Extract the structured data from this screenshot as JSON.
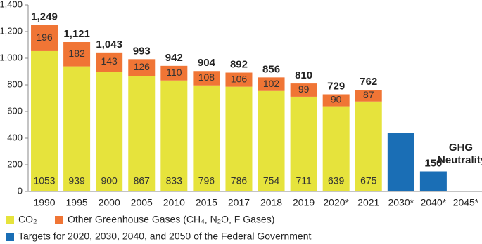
{
  "chart_data": {
    "type": "bar",
    "categories": [
      "1990",
      "1995",
      "2000",
      "2005",
      "2010",
      "2015",
      "2017",
      "2018",
      "2019",
      "2020*",
      "2021",
      "2030*",
      "2040*",
      "2045*"
    ],
    "series": [
      {
        "name": "CO₂",
        "color": "#e6e33c",
        "values": [
          1053,
          939,
          900,
          867,
          833,
          796,
          786,
          754,
          711,
          639,
          675,
          null,
          null,
          null
        ]
      },
      {
        "name": "Other Greenhouse Gases (CH₄, N₂O, F Gases)",
        "color": "#f07535",
        "values": [
          196,
          182,
          143,
          126,
          110,
          108,
          106,
          102,
          99,
          90,
          87,
          null,
          null,
          null
        ]
      },
      {
        "name": "Targets for 2020, 2030, 2040, and 2050 of the Federal Government",
        "color": "#1a6eb5",
        "values": [
          null,
          null,
          null,
          null,
          null,
          null,
          null,
          null,
          null,
          null,
          null,
          438,
          150,
          null
        ]
      }
    ],
    "totals": {
      "values": [
        1249,
        1121,
        1043,
        993,
        942,
        904,
        892,
        856,
        810,
        729,
        762,
        null,
        null,
        null
      ],
      "value_labels": [
        "1,249",
        "1,121",
        "1,043",
        "993",
        "942",
        "904",
        "892",
        "856",
        "810",
        "729",
        "762",
        null,
        null,
        null
      ]
    },
    "annotation": "GHG Neutrality",
    "ylim": [
      0,
      1400
    ],
    "yticks": [
      0,
      200,
      400,
      600,
      800,
      {
        "value": 1000,
        "label": "1,000"
      },
      {
        "value": 1200,
        "label": "1,200"
      },
      {
        "value": 1400,
        "label": "1,400"
      }
    ]
  }
}
